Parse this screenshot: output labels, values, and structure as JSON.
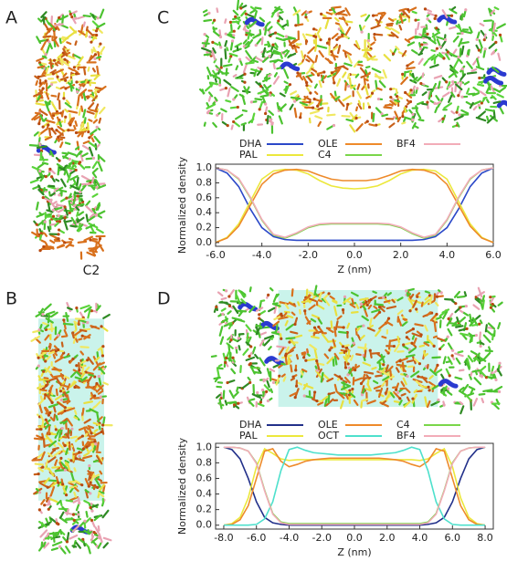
{
  "figure": {
    "panel_labels": [
      "A",
      "B",
      "C",
      "D"
    ],
    "subtitle": "C2"
  },
  "chart_data": [
    {
      "type": "line",
      "xlabel": "Z (nm)",
      "ylabel": "Normalized density",
      "legend": "top",
      "x": [
        -6,
        -5.5,
        -5,
        -4.5,
        -4,
        -3.5,
        -3,
        -2.5,
        -2,
        -1.5,
        -1,
        -0.5,
        0,
        0.5,
        1,
        1.5,
        2,
        2.5,
        3,
        3.5,
        4,
        4.5,
        5,
        5.5,
        6
      ],
      "xlim": [
        -6,
        6
      ],
      "xticks": [
        {
          "value": -6,
          "label": "-6.0"
        },
        {
          "value": -4,
          "label": "-4.0"
        },
        {
          "value": -2,
          "label": "-2.0"
        },
        {
          "value": 0,
          "label": "0.0"
        },
        {
          "value": 2,
          "label": "2.0"
        },
        {
          "value": 4,
          "label": "4.0"
        },
        {
          "value": 6,
          "label": "6.0"
        }
      ],
      "ylim": [
        -0.05,
        1.05
      ],
      "yticks": [
        {
          "value": 0,
          "label": "0.0"
        },
        {
          "value": 0.2,
          "label": "0.2"
        },
        {
          "value": 0.4,
          "label": "0.4"
        },
        {
          "value": 0.6,
          "label": "0.6"
        },
        {
          "value": 0.8,
          "label": "0.8"
        },
        {
          "value": 1,
          "label": "1.0"
        }
      ],
      "series": [
        {
          "name": "DHA",
          "color": "#2b48c8",
          "values": [
            1.0,
            0.93,
            0.75,
            0.45,
            0.2,
            0.08,
            0.04,
            0.03,
            0.03,
            0.03,
            0.03,
            0.03,
            0.03,
            0.03,
            0.03,
            0.03,
            0.03,
            0.03,
            0.04,
            0.08,
            0.2,
            0.45,
            0.75,
            0.93,
            1.0
          ]
        },
        {
          "name": "PAL",
          "color": "#ece83c",
          "values": [
            0.0,
            0.07,
            0.25,
            0.55,
            0.85,
            0.96,
            0.98,
            0.97,
            0.92,
            0.83,
            0.76,
            0.73,
            0.72,
            0.73,
            0.76,
            0.83,
            0.92,
            0.97,
            0.98,
            0.96,
            0.85,
            0.55,
            0.25,
            0.07,
            0.0
          ]
        },
        {
          "name": "OLE",
          "color": "#ee8a2a",
          "values": [
            0.0,
            0.06,
            0.22,
            0.5,
            0.78,
            0.92,
            0.97,
            0.98,
            0.96,
            0.9,
            0.85,
            0.83,
            0.83,
            0.83,
            0.85,
            0.9,
            0.96,
            0.98,
            0.97,
            0.92,
            0.78,
            0.5,
            0.22,
            0.06,
            0.0
          ]
        },
        {
          "name": "C4",
          "color": "#7ad64a",
          "values": [
            1.0,
            0.97,
            0.85,
            0.6,
            0.3,
            0.1,
            0.06,
            0.12,
            0.2,
            0.24,
            0.25,
            0.25,
            0.25,
            0.25,
            0.25,
            0.24,
            0.2,
            0.12,
            0.06,
            0.1,
            0.3,
            0.6,
            0.85,
            0.97,
            1.0
          ]
        },
        {
          "name": "BF4",
          "color": "#f2acb8",
          "values": [
            1.0,
            0.97,
            0.86,
            0.61,
            0.31,
            0.11,
            0.07,
            0.13,
            0.21,
            0.25,
            0.26,
            0.26,
            0.26,
            0.26,
            0.26,
            0.25,
            0.21,
            0.13,
            0.07,
            0.11,
            0.31,
            0.61,
            0.86,
            0.97,
            1.0
          ]
        }
      ]
    },
    {
      "type": "line",
      "xlabel": "Z (nm)",
      "ylabel": "Normalized density",
      "legend": "top",
      "x": [
        -8,
        -7.5,
        -7,
        -6.5,
        -6,
        -5.5,
        -5,
        -4.5,
        -4,
        -3.5,
        -3,
        -2.5,
        -2,
        -1.5,
        -1,
        -0.5,
        0,
        0.5,
        1,
        1.5,
        2,
        2.5,
        3,
        3.5,
        4,
        4.5,
        5,
        5.5,
        6,
        6.5,
        7,
        7.5,
        8
      ],
      "xlim": [
        -8.5,
        8.5
      ],
      "xticks": [
        {
          "value": -8,
          "label": "-8.0"
        },
        {
          "value": -6,
          "label": "-6.0"
        },
        {
          "value": -4,
          "label": "-4.0"
        },
        {
          "value": -2,
          "label": "-2.0"
        },
        {
          "value": 0,
          "label": "0.0"
        },
        {
          "value": 2,
          "label": "2.0"
        },
        {
          "value": 4,
          "label": "4.0"
        },
        {
          "value": 6,
          "label": "6.0"
        },
        {
          "value": 8,
          "label": "8.0"
        }
      ],
      "ylim": [
        -0.05,
        1.05
      ],
      "yticks": [
        {
          "value": 0,
          "label": "0.0"
        },
        {
          "value": 0.2,
          "label": "0.2"
        },
        {
          "value": 0.4,
          "label": "0.4"
        },
        {
          "value": 0.6,
          "label": "0.6"
        },
        {
          "value": 0.8,
          "label": "0.8"
        },
        {
          "value": 1,
          "label": "1.0"
        }
      ],
      "series": [
        {
          "name": "DHA",
          "color": "#22308a",
          "values": [
            1.0,
            0.97,
            0.85,
            0.6,
            0.3,
            0.1,
            0.03,
            0.01,
            0,
            0,
            0,
            0,
            0,
            0,
            0,
            0,
            0,
            0,
            0,
            0,
            0,
            0,
            0,
            0,
            0,
            0.01,
            0.03,
            0.1,
            0.3,
            0.6,
            0.85,
            0.97,
            1.0
          ]
        },
        {
          "name": "PAL",
          "color": "#ece83c",
          "values": [
            0.0,
            0.02,
            0.1,
            0.35,
            0.75,
            0.98,
            0.92,
            0.85,
            0.83,
            0.84,
            0.84,
            0.84,
            0.84,
            0.84,
            0.84,
            0.84,
            0.84,
            0.84,
            0.84,
            0.84,
            0.84,
            0.84,
            0.84,
            0.84,
            0.83,
            0.85,
            0.92,
            0.98,
            0.75,
            0.35,
            0.1,
            0.02,
            0.0
          ]
        },
        {
          "name": "OLE",
          "color": "#ee8a2a",
          "values": [
            0.0,
            0.01,
            0.07,
            0.25,
            0.6,
            0.95,
            0.98,
            0.82,
            0.75,
            0.78,
            0.82,
            0.84,
            0.85,
            0.86,
            0.86,
            0.86,
            0.86,
            0.86,
            0.86,
            0.86,
            0.85,
            0.84,
            0.82,
            0.78,
            0.75,
            0.82,
            0.98,
            0.95,
            0.6,
            0.25,
            0.07,
            0.01,
            0.0
          ]
        },
        {
          "name": "OCT",
          "color": "#4ee0cc",
          "values": [
            0,
            0,
            0,
            0,
            0.01,
            0.08,
            0.3,
            0.7,
            0.97,
            1.0,
            0.96,
            0.93,
            0.92,
            0.91,
            0.9,
            0.9,
            0.9,
            0.9,
            0.9,
            0.91,
            0.92,
            0.93,
            0.96,
            1.0,
            0.97,
            0.7,
            0.3,
            0.08,
            0.01,
            0,
            0,
            0,
            0
          ]
        },
        {
          "name": "C4",
          "color": "#7ad64a",
          "values": [
            1.0,
            1.0,
            0.99,
            0.95,
            0.8,
            0.45,
            0.15,
            0.04,
            0.02,
            0.02,
            0.02,
            0.02,
            0.02,
            0.02,
            0.02,
            0.02,
            0.02,
            0.02,
            0.02,
            0.02,
            0.02,
            0.02,
            0.02,
            0.02,
            0.02,
            0.04,
            0.15,
            0.45,
            0.8,
            0.95,
            0.99,
            1.0,
            1.0
          ]
        },
        {
          "name": "BF4",
          "color": "#f2acb8",
          "values": [
            1.0,
            1.0,
            0.99,
            0.95,
            0.79,
            0.44,
            0.14,
            0.03,
            0.01,
            0.01,
            0.01,
            0.01,
            0.01,
            0.01,
            0.01,
            0.01,
            0.01,
            0.01,
            0.01,
            0.01,
            0.01,
            0.01,
            0.01,
            0.01,
            0.01,
            0.03,
            0.14,
            0.44,
            0.79,
            0.95,
            0.99,
            1.0,
            1.0
          ]
        }
      ]
    }
  ]
}
